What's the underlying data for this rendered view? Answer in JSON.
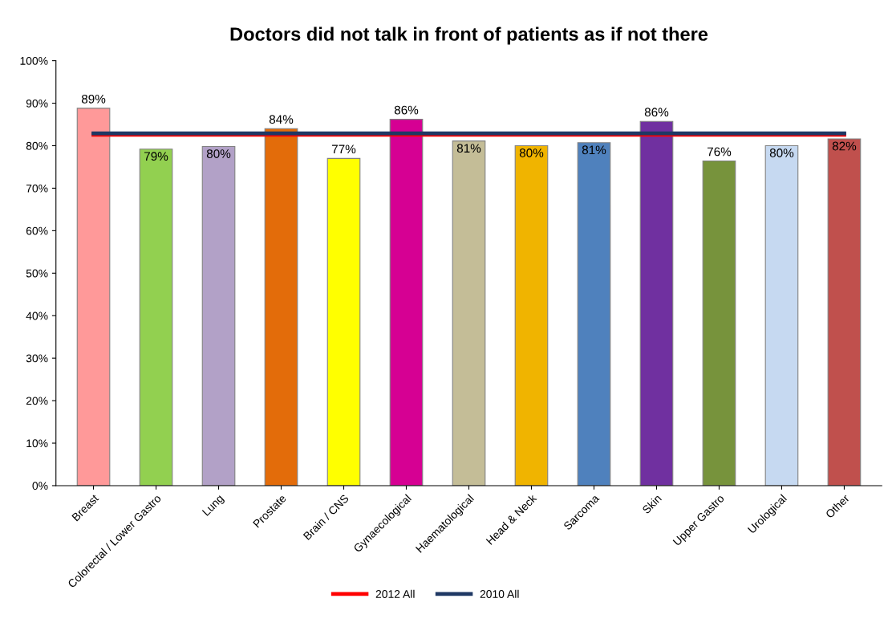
{
  "chart_data": {
    "type": "bar",
    "title": "Doctors did not talk in front of patients as if not there",
    "categories": [
      "Breast",
      "Colorectal / Lower Gastro",
      "Lung",
      "Prostate",
      "Brain / CNS",
      "Gynaecological",
      "Haematological",
      "Head & Neck",
      "Sarcoma",
      "Skin",
      "Upper Gastro",
      "Urological",
      "Other"
    ],
    "series": [
      {
        "colors": [
          "#ff9999",
          "#92d050",
          "#b2a1c7",
          "#e36c0a",
          "#ffff00",
          "#d60093",
          "#c4bd97",
          "#f0b400",
          "#4f81bd",
          "#7030a0",
          "#77933c",
          "#c6d9f1",
          "#c0504d"
        ],
        "values": [
          88.8,
          79.2,
          79.8,
          84.0,
          77.0,
          86.2,
          81.1,
          80.0,
          80.7,
          85.7,
          76.4,
          80.0,
          81.6
        ],
        "value_labels": [
          "89%",
          "79%",
          "80%",
          "84%",
          "77%",
          "86%",
          "81%",
          "80%",
          "81%",
          "86%",
          "76%",
          "80%",
          "82%"
        ]
      },
      {
        "type": "line",
        "name": "2012 All",
        "color": "#ff0000",
        "values": [
          82.6,
          82.6,
          82.6,
          82.6,
          82.6,
          82.6,
          82.6,
          82.6,
          82.6,
          82.6,
          82.6,
          82.6,
          82.6
        ]
      },
      {
        "type": "line",
        "name": "2010 All",
        "color": "#1f3864",
        "values": [
          82.9,
          82.9,
          82.9,
          82.9,
          82.9,
          82.9,
          82.9,
          82.9,
          82.9,
          82.9,
          82.9,
          82.9,
          82.9
        ]
      }
    ],
    "ylim": [
      0,
      100
    ],
    "yticks": [
      {
        "value": 0,
        "label": "0%"
      },
      {
        "value": 10,
        "label": "10%"
      },
      {
        "value": 20,
        "label": "20%"
      },
      {
        "value": 30,
        "label": "30%"
      },
      {
        "value": 40,
        "label": "40%"
      },
      {
        "value": 50,
        "label": "50%"
      },
      {
        "value": 60,
        "label": "60%"
      },
      {
        "value": 70,
        "label": "70%"
      },
      {
        "value": 80,
        "label": "80%"
      },
      {
        "value": 90,
        "label": "90%"
      },
      {
        "value": 100,
        "label": "100%"
      }
    ],
    "grid": false,
    "legend": "bottom",
    "marker": "none",
    "line_style": "solid"
  }
}
